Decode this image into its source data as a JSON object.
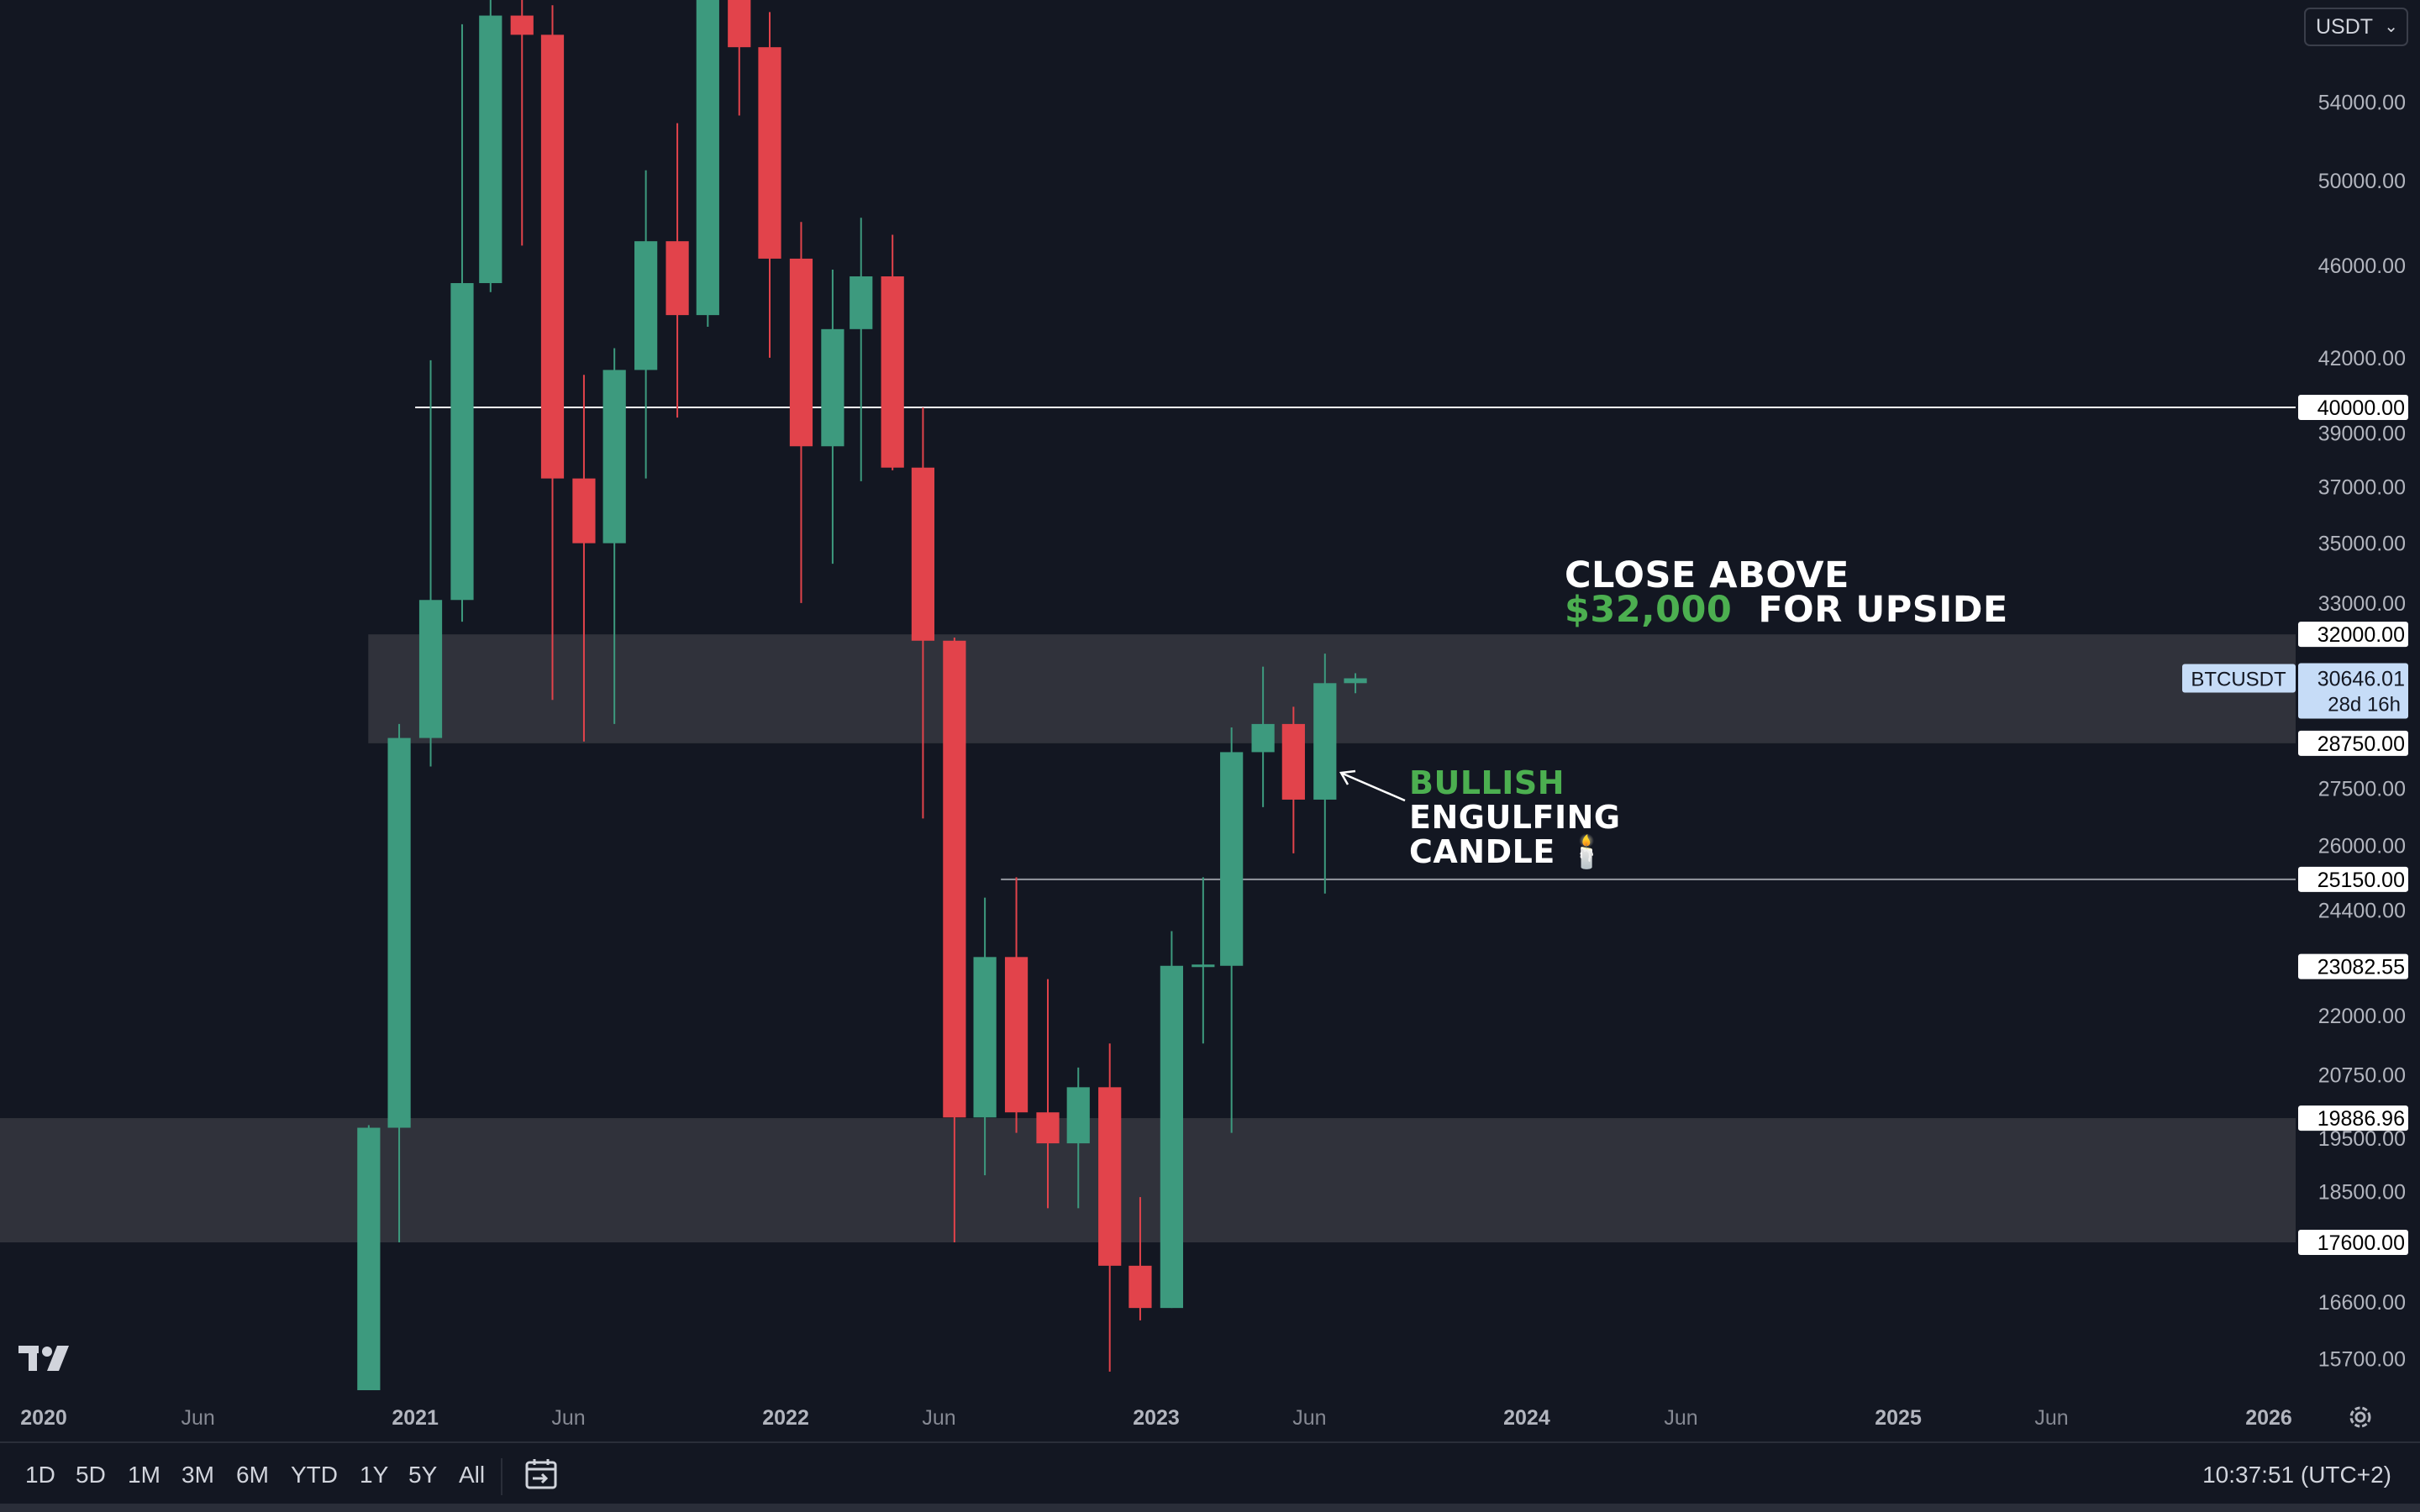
{
  "chart_data": {
    "type": "candlestick",
    "symbol": "BTCUSDT",
    "currency": "USDT",
    "y_scale": "log",
    "ylim": [
      14900,
      62000
    ],
    "price_ticks": [
      54000,
      50000,
      46000,
      42000,
      39000,
      37000,
      35000,
      33000,
      27500,
      26000,
      24400,
      22000,
      20750,
      19500,
      18500,
      16600,
      15700
    ],
    "x_ticks": [
      {
        "label": "2020",
        "date": "2020-01-01",
        "bold": true
      },
      {
        "label": "Jun",
        "date": "2020-06-01",
        "bold": false
      },
      {
        "label": "2021",
        "date": "2021-01-01",
        "bold": true
      },
      {
        "label": "Jun",
        "date": "2021-06-01",
        "bold": false
      },
      {
        "label": "2022",
        "date": "2022-01-01",
        "bold": true
      },
      {
        "label": "Jun",
        "date": "2022-06-01",
        "bold": false
      },
      {
        "label": "2023",
        "date": "2023-01-01",
        "bold": true
      },
      {
        "label": "Jun",
        "date": "2023-06-01",
        "bold": false
      },
      {
        "label": "2024",
        "date": "2024-01-01",
        "bold": true
      },
      {
        "label": "Jun",
        "date": "2024-06-01",
        "bold": false
      },
      {
        "label": "2025",
        "date": "2025-01-01",
        "bold": true
      },
      {
        "label": "Jun",
        "date": "2025-06-01",
        "bold": false
      },
      {
        "label": "2026",
        "date": "2026-01-01",
        "bold": true
      }
    ],
    "candles": [
      {
        "date": "2020-11-01",
        "open": 13800,
        "high": 19750,
        "low": 13200,
        "close": 19700
      },
      {
        "date": "2020-12-01",
        "open": 19700,
        "high": 29300,
        "low": 17600,
        "close": 28900
      },
      {
        "date": "2021-01-01",
        "open": 28900,
        "high": 41900,
        "low": 28100,
        "close": 33100
      },
      {
        "date": "2021-02-01",
        "open": 33100,
        "high": 58300,
        "low": 32400,
        "close": 45200
      },
      {
        "date": "2021-03-01",
        "open": 45200,
        "high": 61700,
        "low": 44800,
        "close": 58800
      },
      {
        "date": "2021-04-01",
        "open": 58800,
        "high": 64800,
        "low": 46900,
        "close": 57700
      },
      {
        "date": "2021-05-01",
        "open": 57700,
        "high": 59400,
        "low": 30000,
        "close": 37300
      },
      {
        "date": "2021-06-01",
        "open": 37300,
        "high": 41300,
        "low": 28800,
        "close": 35000
      },
      {
        "date": "2021-07-01",
        "open": 35000,
        "high": 42400,
        "low": 29300,
        "close": 41500
      },
      {
        "date": "2021-08-01",
        "open": 41500,
        "high": 50500,
        "low": 37300,
        "close": 47100
      },
      {
        "date": "2021-09-01",
        "open": 47100,
        "high": 52900,
        "low": 39600,
        "close": 43800
      },
      {
        "date": "2021-10-01",
        "open": 43800,
        "high": 67000,
        "low": 43300,
        "close": 61300
      },
      {
        "date": "2021-11-01",
        "open": 61300,
        "high": 69000,
        "low": 53300,
        "close": 57000
      },
      {
        "date": "2021-12-01",
        "open": 57000,
        "high": 59000,
        "low": 42000,
        "close": 46300
      },
      {
        "date": "2022-01-01",
        "open": 46300,
        "high": 48000,
        "low": 33000,
        "close": 38500
      },
      {
        "date": "2022-02-01",
        "open": 38500,
        "high": 45800,
        "low": 34300,
        "close": 43200
      },
      {
        "date": "2022-03-01",
        "open": 43200,
        "high": 48200,
        "low": 37200,
        "close": 45500
      },
      {
        "date": "2022-04-01",
        "open": 45500,
        "high": 47400,
        "low": 37600,
        "close": 37700
      },
      {
        "date": "2022-05-01",
        "open": 37700,
        "high": 40000,
        "low": 26700,
        "close": 31800
      },
      {
        "date": "2022-06-01",
        "open": 31800,
        "high": 31900,
        "low": 17600,
        "close": 19900
      },
      {
        "date": "2022-07-01",
        "open": 19900,
        "high": 24700,
        "low": 18800,
        "close": 23300
      },
      {
        "date": "2022-08-01",
        "open": 23300,
        "high": 25200,
        "low": 19600,
        "close": 20000
      },
      {
        "date": "2022-09-01",
        "open": 20000,
        "high": 22800,
        "low": 18200,
        "close": 19400
      },
      {
        "date": "2022-10-01",
        "open": 19400,
        "high": 20900,
        "low": 18200,
        "close": 20500
      },
      {
        "date": "2022-11-01",
        "open": 20500,
        "high": 21400,
        "low": 15500,
        "close": 17200
      },
      {
        "date": "2022-12-01",
        "open": 17200,
        "high": 18400,
        "low": 16300,
        "close": 16500
      },
      {
        "date": "2023-01-01",
        "open": 16500,
        "high": 23900,
        "low": 16500,
        "close": 23100
      },
      {
        "date": "2023-02-01",
        "open": 23100,
        "high": 25200,
        "low": 21400,
        "close": 23100
      },
      {
        "date": "2023-03-01",
        "open": 23100,
        "high": 29200,
        "low": 19600,
        "close": 28500
      },
      {
        "date": "2023-04-01",
        "open": 28500,
        "high": 31000,
        "low": 27000,
        "close": 29300
      },
      {
        "date": "2023-05-01",
        "open": 29300,
        "high": 29800,
        "low": 25800,
        "close": 27200
      },
      {
        "date": "2023-06-01",
        "open": 27200,
        "high": 31400,
        "low": 24800,
        "close": 30500
      },
      {
        "date": "2023-07-01",
        "open": 30500,
        "high": 30800,
        "low": 30200,
        "close": 30646.01
      }
    ],
    "zones": [
      {
        "from": 28750,
        "to": 32000,
        "start": "2020-12-01"
      },
      {
        "from": 17600,
        "to": 19886.96,
        "start": "2019-10-01"
      }
    ],
    "lines": [
      {
        "price": 40000,
        "start": "2021-01-01",
        "color": "#ffffff"
      },
      {
        "price": 25150,
        "start": "2022-08-01",
        "color": "#9598a1"
      }
    ],
    "price_labels": [
      {
        "price": 40000,
        "text": "40000.00"
      },
      {
        "price": 32000,
        "text": "32000.00"
      },
      {
        "price": 28750,
        "text": "28750.00"
      },
      {
        "price": 25150,
        "text": "25150.00"
      },
      {
        "price": 23082.55,
        "text": "23082.55"
      },
      {
        "price": 19886.96,
        "text": "19886.96"
      },
      {
        "price": 17600,
        "text": "17600.00"
      }
    ],
    "last_price": {
      "price": 30646.01,
      "text": "30646.01",
      "countdown": "28d 16h",
      "symbol": "BTCUSDT"
    },
    "colors": {
      "up": "#3d9a7e",
      "down": "#e2434b",
      "background": "#131722",
      "zone": "#30323b",
      "label_bg": "#ffffff",
      "last_label_bg": "#c6dcf7"
    }
  },
  "annotations": {
    "close_above_line1": "CLOSE ABOVE",
    "close_above_price": "$32,000",
    "close_above_rest": "FOR UPSIDE",
    "bullish": "BULLISH",
    "engulfing": "ENGULFING",
    "candle": "CANDLE 🕯️"
  },
  "toolbar": {
    "currency": "USDT",
    "timeframes": [
      "1D",
      "5D",
      "1M",
      "3M",
      "6M",
      "YTD",
      "1Y",
      "5Y",
      "All"
    ],
    "clock": "10:37:51 (UTC+2)"
  }
}
